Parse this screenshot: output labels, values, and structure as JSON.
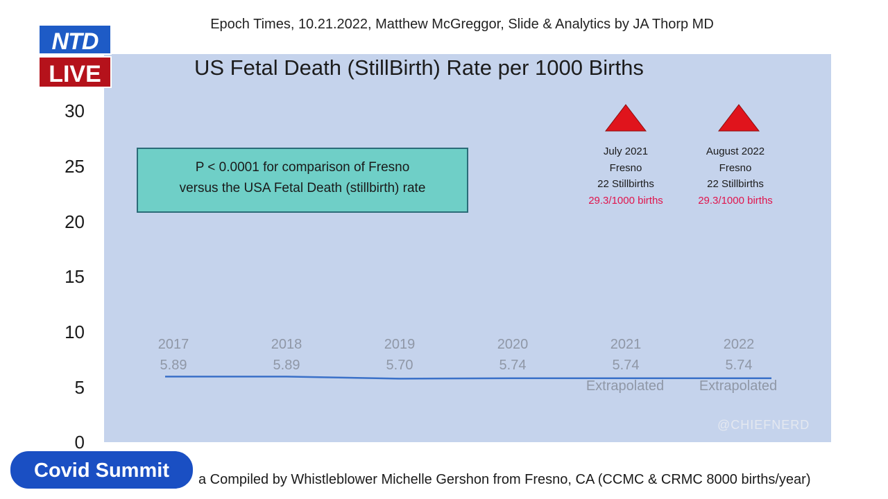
{
  "credit_line": "Epoch Times,  10.21.2022, Matthew McGreggor, Slide & Analytics by  JA Thorp MD",
  "logo": {
    "top": "NTD",
    "bottom": "LIVE"
  },
  "badge": "Covid Summit",
  "watermark": "@CHIEFNERD",
  "footer_source": "a Compiled by Whistleblower Michelle Gershon from Fresno, CA (CCMC & CRMC 8000 births/year)",
  "pvalue_box": {
    "line1": "P < 0.0001 for comparison of Fresno",
    "line2": "versus the USA Fetal Death (stillbirth) rate"
  },
  "colors": {
    "panel": "#c5d3ec",
    "line": "#3a70c8",
    "marker": "#e0141c",
    "rate_text": "#e0144c",
    "box": "#6fcfc7"
  },
  "chart_data": {
    "type": "line",
    "title": "US Fetal Death (StillBirth) Rate per 1000 Births",
    "ylim": [
      0,
      30
    ],
    "y_ticks": [
      "30",
      "25",
      "20",
      "15",
      "10",
      "5",
      "0"
    ],
    "categories": [
      "2017",
      "2018",
      "2019",
      "2020",
      "2021",
      "2022"
    ],
    "value_labels": [
      "5.89",
      "5.89",
      "5.70",
      "5.74",
      "5.74",
      "5.74"
    ],
    "notes": [
      "",
      "",
      "",
      "",
      "Extrapolated",
      "Extrapolated"
    ],
    "series": [
      {
        "values": [
          5.89,
          5.89,
          5.7,
          5.74,
          5.74,
          5.74
        ]
      }
    ],
    "markers": [
      {
        "category": "2021",
        "value": 29.3,
        "month": "July 2021",
        "place": "Fresno",
        "count": "22 Stillbirths",
        "rate": "29.3/1000 births"
      },
      {
        "category": "2022",
        "value": 29.3,
        "month": "August 2022",
        "place": "Fresno",
        "count": "22 Stillbirths",
        "rate": "29.3/1000 births"
      }
    ]
  }
}
